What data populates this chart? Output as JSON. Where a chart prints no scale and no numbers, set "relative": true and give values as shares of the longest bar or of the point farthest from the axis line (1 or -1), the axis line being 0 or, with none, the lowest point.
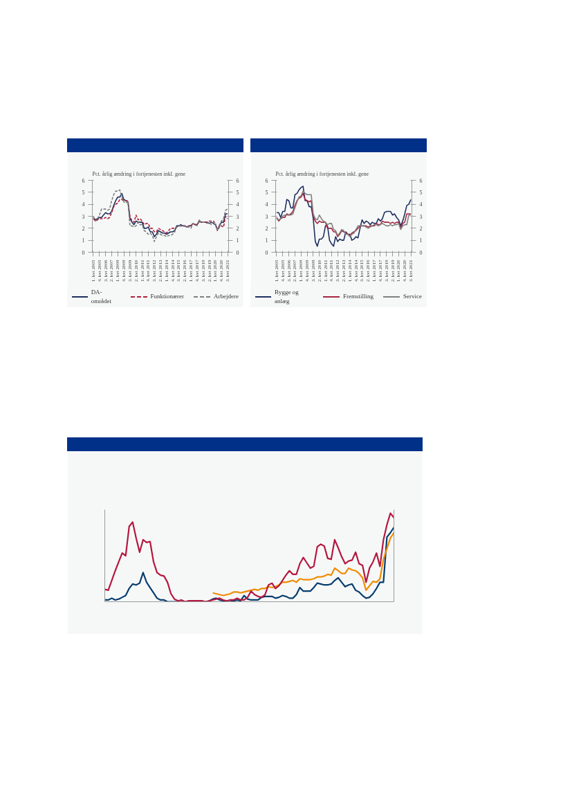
{
  "chart_data": [
    {
      "type": "line",
      "ylabel": "Pct. årlig ændring i fortjenesten inkl. gene",
      "categories": [
        "1. kvt 2005",
        null,
        null,
        "4. kvt 2005",
        null,
        null,
        "3. kvt 2006",
        null,
        null,
        "2. kvt 2007",
        null,
        null,
        "1. kvt 2008",
        null,
        null,
        "4. kvt 2008",
        null,
        null,
        "3. kvt 2009",
        null,
        null,
        "2. kvt 2010",
        null,
        null,
        "1. kvt 2011",
        null,
        null,
        "4. kvt 2011",
        null,
        null,
        "3. kvt 2012",
        null,
        null,
        "2. kvt 2013",
        null,
        null,
        "1. kvt 2014",
        null,
        null,
        "4. kvt 2014",
        null,
        null,
        "3. kvt 2015",
        null,
        null,
        "2. kvt 2016",
        null,
        null,
        "1. kvt 2017",
        null,
        null,
        "4. kvt 2017",
        null,
        null,
        "3. kvt 2018",
        null,
        null,
        "2. kvt 2019",
        null,
        null,
        "1. kvt 2020",
        null,
        null,
        "4. kvt 2020",
        null,
        null,
        "3. kvt 2021"
      ],
      "ylim": [
        0,
        6
      ],
      "yticks": [
        0,
        1,
        2,
        3,
        4,
        5,
        6
      ],
      "y2lim": [
        0,
        6
      ],
      "y2ticks": [
        0,
        1,
        2,
        3,
        4,
        5,
        6
      ],
      "legend": "bottom",
      "grid": false,
      "series": [
        {
          "name": "DA-området",
          "color": "#1f2f5f",
          "line_style": "solid",
          "values": [
            2.9,
            2.7,
            2.8,
            2.9,
            2.9,
            3.1,
            3.3,
            3.2,
            3.2,
            3.4,
            3.9,
            4.3,
            4.6,
            4.6,
            4.9,
            4.4,
            4.3,
            4.2,
            2.8,
            2.5,
            2.3,
            2.6,
            2.5,
            2.5,
            2.5,
            2.0,
            2.0,
            2.1,
            1.7,
            1.7,
            1.3,
            1.5,
            1.8,
            1.7,
            1.6,
            1.6,
            1.5,
            1.6,
            1.7,
            1.7,
            1.8,
            2.2,
            2.2,
            2.3,
            2.2,
            2.2,
            2.1,
            2.2,
            2.2,
            2.4,
            2.3,
            2.3,
            2.6,
            2.5,
            2.5,
            2.5,
            2.5,
            2.4,
            2.5,
            2.4,
            2.3,
            1.9,
            2.2,
            2.5,
            2.5,
            3.2,
            3.2
          ]
        },
        {
          "name": "Funktionærer",
          "color": "#b0203a",
          "line_style": "dashed",
          "values": [
            2.8,
            2.6,
            2.7,
            2.8,
            2.8,
            2.8,
            2.9,
            2.8,
            2.9,
            3.3,
            3.8,
            4.0,
            4.1,
            4.4,
            4.4,
            4.3,
            4.3,
            4.3,
            3.0,
            2.6,
            2.5,
            3.1,
            2.7,
            2.8,
            2.6,
            2.3,
            2.4,
            2.4,
            2.0,
            2.0,
            1.7,
            1.7,
            2.0,
            1.9,
            1.8,
            1.7,
            1.6,
            1.8,
            2.0,
            2.0,
            2.0,
            2.1,
            2.2,
            2.2,
            2.2,
            2.2,
            2.1,
            2.2,
            2.2,
            2.4,
            2.3,
            2.3,
            2.5,
            2.5,
            2.5,
            2.5,
            2.5,
            2.6,
            2.6,
            2.6,
            2.4,
            1.8,
            2.1,
            2.2,
            2.1,
            3.0,
            2.8
          ]
        },
        {
          "name": "Arbejdere",
          "color": "#7f7f7f",
          "line_style": "dashed",
          "values": [
            3.0,
            2.6,
            2.8,
            3.1,
            3.6,
            3.6,
            3.6,
            3.5,
            3.6,
            4.3,
            4.8,
            5.1,
            5.1,
            5.2,
            4.6,
            4.2,
            4.1,
            4.3,
            2.2,
            2.2,
            2.1,
            2.2,
            2.5,
            2.3,
            2.3,
            1.8,
            1.7,
            1.5,
            1.6,
            1.4,
            0.9,
            1.3,
            1.6,
            1.5,
            1.4,
            1.4,
            1.3,
            1.4,
            1.4,
            1.5,
            1.7,
            2.1,
            2.2,
            2.2,
            2.2,
            2.2,
            2.1,
            2.1,
            2.0,
            2.4,
            2.3,
            2.2,
            2.7,
            2.5,
            2.5,
            2.5,
            2.4,
            2.5,
            2.3,
            2.5,
            2.4,
            1.8,
            2.3,
            2.6,
            2.8,
            3.5,
            3.6
          ]
        }
      ]
    },
    {
      "type": "line",
      "ylabel": "Pct. årlig ændring i fortjenesten inkl. gene",
      "categories": [
        "1. kvt 2005",
        null,
        null,
        "4. kvt 2005",
        null,
        null,
        "3. kvt 2006",
        null,
        null,
        "2. kvt 2007",
        null,
        null,
        "1. kvt 2008",
        null,
        null,
        "4. kvt 2008",
        null,
        null,
        "3. kvt 2009",
        null,
        null,
        "2. kvt 2010",
        null,
        null,
        "1. kvt 2011",
        null,
        null,
        "4. kvt 2011",
        null,
        null,
        "3. kvt 2012",
        null,
        null,
        "2. kvt 2013",
        null,
        null,
        "1. kvt 2014",
        null,
        null,
        "4. kvt 2014",
        null,
        null,
        "3. kvt 2015",
        null,
        null,
        "2. kvt 2016",
        null,
        null,
        "1. kvt 2017",
        null,
        null,
        "4. kvt 2017",
        null,
        null,
        "3. kvt 2018",
        null,
        null,
        "2. kvt 2019",
        null,
        null,
        "1. kvt 2020",
        null,
        null,
        "4. kvt 2020",
        null,
        null,
        "3. kvt 2021"
      ],
      "ylim": [
        0,
        6
      ],
      "yticks": [
        0,
        1,
        2,
        3,
        4,
        5,
        6
      ],
      "y2lim": [
        0,
        6
      ],
      "y2ticks": [
        0,
        1,
        2,
        3,
        4,
        5,
        6
      ],
      "legend": "bottom",
      "grid": false,
      "line_style": "solid",
      "series": [
        {
          "name": "Bygge og anlæg",
          "color": "#1f2f5f",
          "values": [
            3.3,
            3.3,
            2.9,
            3.4,
            3.4,
            4.4,
            4.3,
            3.7,
            3.7,
            4.8,
            4.9,
            5.2,
            5.4,
            5.5,
            4.3,
            4.3,
            3.8,
            3.8,
            2.8,
            0.9,
            0.5,
            1.1,
            1.1,
            1.3,
            2.2,
            2.2,
            1.0,
            0.7,
            0.5,
            1.3,
            0.9,
            1.1,
            1.0,
            1.0,
            1.7,
            1.5,
            1.5,
            1.0,
            1.1,
            1.3,
            1.2,
            2.0,
            2.7,
            2.4,
            2.6,
            2.5,
            2.3,
            2.5,
            2.4,
            2.4,
            2.8,
            2.6,
            2.8,
            3.3,
            3.4,
            3.4,
            3.4,
            3.1,
            3.2,
            2.9,
            2.7,
            2.2,
            2.6,
            3.2,
            3.9,
            4.0,
            4.4
          ]
        },
        {
          "name": "Fremstilling",
          "color": "#a6253f",
          "values": [
            2.9,
            2.6,
            2.8,
            2.9,
            2.9,
            3.2,
            3.1,
            3.2,
            3.4,
            3.9,
            4.3,
            4.5,
            4.6,
            4.9,
            4.4,
            4.3,
            4.2,
            4.3,
            3.0,
            2.6,
            2.4,
            2.6,
            2.5,
            2.5,
            2.5,
            2.0,
            2.0,
            2.0,
            1.7,
            1.7,
            1.3,
            1.5,
            1.8,
            1.7,
            1.6,
            1.5,
            1.4,
            1.6,
            1.7,
            1.8,
            2.0,
            2.2,
            2.2,
            2.2,
            2.2,
            2.1,
            2.2,
            2.2,
            2.2,
            2.4,
            2.3,
            2.3,
            2.6,
            2.5,
            2.5,
            2.5,
            2.4,
            2.5,
            2.4,
            2.5,
            2.5,
            2.0,
            2.4,
            2.5,
            3.2,
            3.2,
            3.2
          ]
        },
        {
          "name": "Service",
          "color": "#808080",
          "values": [
            2.8,
            2.7,
            2.8,
            3.0,
            3.1,
            3.1,
            3.1,
            3.1,
            3.2,
            3.7,
            4.2,
            4.6,
            4.7,
            5.1,
            4.9,
            4.8,
            4.8,
            4.8,
            3.2,
            2.8,
            2.7,
            3.1,
            2.8,
            2.6,
            2.5,
            2.3,
            2.4,
            2.4,
            1.9,
            1.8,
            1.4,
            1.6,
            1.9,
            1.8,
            1.5,
            1.5,
            1.3,
            1.5,
            1.6,
            1.9,
            2.2,
            2.2,
            2.2,
            2.2,
            2.1,
            2.0,
            2.1,
            2.2,
            2.3,
            2.3,
            2.2,
            2.3,
            2.4,
            2.3,
            2.2,
            2.2,
            2.3,
            2.2,
            2.3,
            2.3,
            2.4,
            1.9,
            2.2,
            2.3,
            2.3,
            3.1,
            3.1
          ]
        }
      ]
    },
    {
      "type": "line",
      "relative": true,
      "grid": false,
      "line_style": "solid",
      "categories": [
        null,
        null,
        null,
        null,
        null,
        null,
        null,
        null,
        null,
        null,
        null,
        null,
        null,
        null,
        null,
        null,
        null,
        null,
        null,
        null,
        null,
        null,
        null,
        null,
        null,
        null,
        null,
        null,
        null,
        null,
        null,
        null,
        null,
        null,
        null,
        null,
        null,
        null,
        null,
        null,
        null,
        null,
        null,
        null,
        null,
        null,
        null,
        null,
        null,
        null,
        null,
        null,
        null,
        null,
        null,
        null,
        null,
        null,
        null,
        null,
        null,
        null,
        null,
        null,
        null,
        null,
        null,
        null,
        null,
        null,
        null,
        null,
        null,
        null,
        null,
        null,
        null,
        null,
        null,
        null,
        null,
        null,
        null,
        null
      ],
      "series": [
        {
          "color": "#073d6d",
          "values": [
            0.02,
            0.02,
            0.04,
            0.02,
            0.03,
            0.05,
            0.07,
            0.15,
            0.2,
            0.19,
            0.21,
            0.33,
            0.22,
            0.16,
            0.1,
            0.04,
            0.02,
            0.02,
            0.0,
            0.0,
            0.0,
            0.0,
            0.0,
            0.0,
            0.0,
            0.0,
            0.0,
            0.0,
            0.0,
            0.0,
            0.01,
            0.03,
            0.04,
            0.02,
            0.01,
            0.0,
            0.0,
            0.01,
            0.02,
            0.01,
            0.07,
            0.03,
            0.02,
            0.02,
            0.02,
            0.05,
            0.06,
            0.06,
            0.06,
            0.04,
            0.05,
            0.07,
            0.06,
            0.04,
            0.04,
            0.08,
            0.16,
            0.12,
            0.12,
            0.12,
            0.16,
            0.21,
            0.2,
            0.19,
            0.19,
            0.2,
            0.24,
            0.27,
            0.22,
            0.17,
            0.19,
            0.2,
            0.13,
            0.11,
            0.07,
            0.04,
            0.05,
            0.09,
            0.15,
            0.22,
            0.22,
            0.73,
            0.78,
            0.84
          ]
        },
        {
          "color": "#f08c00",
          "values": [
            null,
            null,
            null,
            null,
            null,
            null,
            null,
            null,
            null,
            null,
            null,
            null,
            null,
            null,
            null,
            null,
            null,
            null,
            null,
            null,
            null,
            null,
            null,
            null,
            null,
            null,
            null,
            null,
            null,
            null,
            null,
            0.1,
            0.09,
            0.08,
            0.07,
            0.08,
            0.09,
            0.11,
            0.11,
            0.1,
            0.11,
            0.12,
            0.13,
            0.14,
            0.13,
            0.15,
            0.15,
            0.17,
            0.16,
            0.17,
            0.19,
            0.22,
            0.22,
            0.23,
            0.24,
            0.22,
            0.26,
            0.25,
            0.25,
            0.25,
            0.26,
            0.28,
            0.28,
            0.29,
            0.31,
            0.3,
            0.38,
            0.35,
            0.32,
            0.32,
            0.38,
            0.36,
            0.35,
            0.32,
            0.27,
            0.13,
            0.18,
            0.23,
            0.22,
            0.26,
            0.48,
            0.6,
            0.72,
            0.78
          ]
        },
        {
          "color": "#b5173e",
          "values": [
            0.14,
            0.13,
            0.24,
            0.35,
            0.45,
            0.55,
            0.52,
            0.85,
            0.9,
            0.72,
            0.56,
            0.7,
            0.67,
            0.68,
            0.45,
            0.33,
            0.3,
            0.29,
            0.22,
            0.09,
            0.03,
            0.01,
            0.02,
            0.0,
            0.01,
            0.01,
            0.01,
            0.01,
            0.01,
            0.0,
            0.01,
            0.02,
            0.03,
            0.04,
            0.02,
            0.01,
            0.02,
            0.02,
            0.04,
            0.02,
            0.02,
            0.05,
            0.12,
            0.08,
            0.06,
            0.05,
            0.08,
            0.19,
            0.21,
            0.15,
            0.18,
            0.24,
            0.3,
            0.35,
            0.31,
            0.31,
            0.43,
            0.5,
            0.44,
            0.38,
            0.4,
            0.62,
            0.65,
            0.63,
            0.49,
            0.48,
            0.7,
            0.61,
            0.51,
            0.43,
            0.46,
            0.47,
            0.56,
            0.43,
            0.41,
            0.22,
            0.38,
            0.45,
            0.55,
            0.4,
            0.7,
            0.87,
            1.0,
            0.95
          ]
        }
      ]
    }
  ]
}
